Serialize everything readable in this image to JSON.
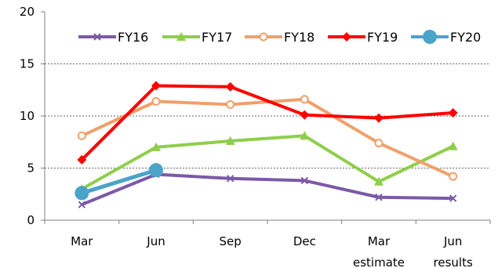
{
  "chart_data": {
    "type": "line",
    "categories": [
      [
        "Mar"
      ],
      [
        "Jun"
      ],
      [
        "Sep"
      ],
      [
        "Dec"
      ],
      [
        "Mar",
        "estimate"
      ],
      [
        "Jun",
        "results"
      ]
    ],
    "series": [
      {
        "name": "FY16",
        "color": "#7b5aa6",
        "marker": "x",
        "values": [
          1.5,
          4.4,
          4.0,
          3.8,
          2.2,
          2.1
        ]
      },
      {
        "name": "FY17",
        "color": "#8fce4a",
        "marker": "triangle",
        "values": [
          3.0,
          7.0,
          7.6,
          8.1,
          3.7,
          7.1
        ]
      },
      {
        "name": "FY18",
        "color": "#f0a06a",
        "marker": "hollow-circle",
        "values": [
          8.1,
          11.4,
          11.1,
          11.6,
          7.4,
          4.2
        ]
      },
      {
        "name": "FY19",
        "color": "#ff0000",
        "marker": "diamond",
        "values": [
          5.8,
          12.9,
          12.8,
          10.1,
          9.8,
          10.3
        ]
      },
      {
        "name": "FY20",
        "color": "#4aa3c8",
        "marker": "circle",
        "values": [
          2.6,
          4.8,
          null,
          null,
          null,
          null
        ]
      }
    ],
    "ylim": [
      0,
      20
    ],
    "yticks": [
      0,
      5,
      10,
      15,
      20
    ],
    "grid": "horizontal-dashed",
    "legend": "top-center"
  }
}
